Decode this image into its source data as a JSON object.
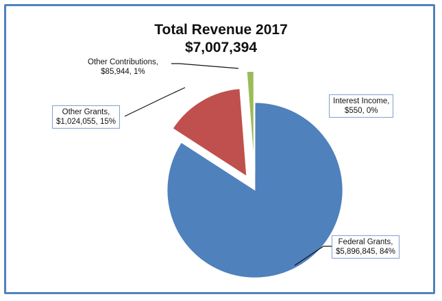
{
  "chart_data": {
    "type": "pie",
    "title": "Total Revenue 2017",
    "subtitle": "$7,007,394",
    "slices": [
      {
        "name": "Federal Grants",
        "value": 5896845,
        "amount_label": "$5,896,845",
        "percent_label": "84%",
        "color": "#4f81bd",
        "exploded": false
      },
      {
        "name": "Other Grants",
        "value": 1024055,
        "amount_label": "$1,024,055",
        "percent_label": "15%",
        "color": "#c0504d",
        "exploded": true
      },
      {
        "name": "Other Contributions",
        "value": 85944,
        "amount_label": "$85,944",
        "percent_label": "1%",
        "color": "#9bbb59",
        "exploded": true
      },
      {
        "name": "Interest Income",
        "value": 550,
        "amount_label": "$550",
        "percent_label": "0%",
        "color": "#8064a2",
        "exploded": true
      }
    ],
    "labels": {
      "federal_line1": "Federal Grants,",
      "federal_line2": "$5,896,845, 84%",
      "other_grants_line1": "Other Grants,",
      "other_grants_line2": "$1,024,055, 15%",
      "other_contrib_line1": "Other Contributions,",
      "other_contrib_line2": "$85,944, 1%",
      "interest_line1": "Interest Income,",
      "interest_line2": "$550, 0%"
    },
    "legend": "none",
    "grid": false
  }
}
